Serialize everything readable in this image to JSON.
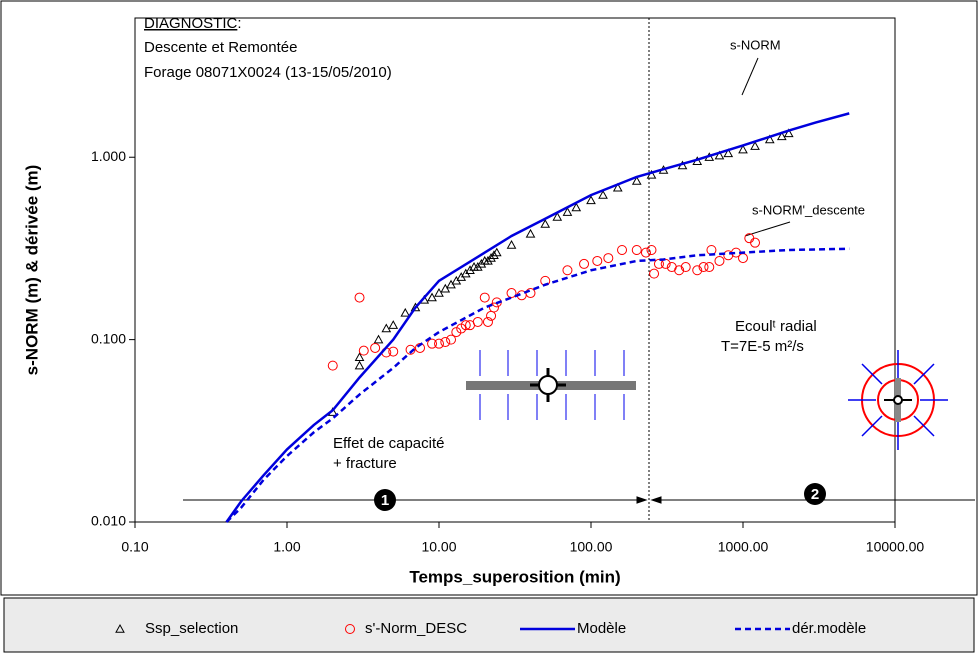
{
  "chart_data": {
    "type": "scatter",
    "title": "DIAGNOSTIC",
    "title_suffix": ":",
    "subtitle_lines": [
      "Descente et Remontée",
      "Forage 08071X0024 (13-15/05/2010)"
    ],
    "xlabel": "Temps_superosition (min)",
    "ylabel": "s-NORM (m) & dérivée (m)",
    "xscale": "log",
    "yscale": "log",
    "xlim": [
      0.1,
      10000
    ],
    "ylim": [
      0.01,
      5.8
    ],
    "xticks": [
      {
        "value": 0.1,
        "label": "0.10"
      },
      {
        "value": 1,
        "label": "1.00"
      },
      {
        "value": 10,
        "label": "10.00"
      },
      {
        "value": 100,
        "label": "100.00"
      },
      {
        "value": 1000,
        "label": "1000.00"
      },
      {
        "value": 10000,
        "label": "10000.00"
      }
    ],
    "yticks": [
      {
        "value": 0.01,
        "label": "0.010"
      },
      {
        "value": 0.1,
        "label": "0.100"
      },
      {
        "value": 1,
        "label": "1.000"
      }
    ],
    "annotations": {
      "snorm": "s-NORM",
      "sderiv": "s-NORM'_descente",
      "ecoul": "Ecoulᵗ radial",
      "transm": "T=7E-5 m²/s",
      "effet1": "Effet de capacité",
      "effet2": "+ fracture",
      "zone1": "1",
      "zone2": "2"
    },
    "series": [
      {
        "name": "Ssp_selection",
        "marker": "triangle",
        "color": "#000000",
        "x": [
          2,
          3,
          3,
          4,
          4.5,
          5,
          6,
          7,
          8,
          9,
          10,
          11,
          12,
          13,
          14,
          15,
          16,
          17,
          18,
          19,
          20,
          21,
          22,
          23,
          24,
          30,
          40,
          50,
          60,
          70,
          80,
          100,
          120,
          150,
          200,
          250,
          300,
          400,
          500,
          600,
          700,
          800,
          1000,
          1200,
          1500,
          1800,
          2000
        ],
        "values": [
          0.04,
          0.072,
          0.08,
          0.1,
          0.115,
          0.12,
          0.14,
          0.15,
          0.165,
          0.17,
          0.18,
          0.19,
          0.2,
          0.21,
          0.22,
          0.23,
          0.24,
          0.25,
          0.25,
          0.26,
          0.27,
          0.27,
          0.28,
          0.29,
          0.3,
          0.33,
          0.38,
          0.43,
          0.47,
          0.5,
          0.53,
          0.58,
          0.62,
          0.68,
          0.74,
          0.8,
          0.85,
          0.9,
          0.95,
          1.0,
          1.02,
          1.05,
          1.1,
          1.15,
          1.25,
          1.3,
          1.35
        ]
      },
      {
        "name": "s'-Norm_DESC",
        "marker": "circle",
        "color": "#ff0000",
        "x": [
          2,
          3,
          3.2,
          3.8,
          4.5,
          5,
          6.5,
          7.5,
          9,
          10,
          11,
          12,
          13,
          14,
          15,
          16,
          18,
          20,
          21,
          22,
          23,
          24,
          30,
          35,
          40,
          50,
          70,
          90,
          110,
          130,
          160,
          200,
          230,
          250,
          260,
          280,
          310,
          340,
          380,
          420,
          500,
          550,
          600,
          620,
          700,
          800,
          900,
          1000,
          1100,
          1200
        ],
        "values": [
          0.072,
          0.17,
          0.087,
          0.09,
          0.085,
          0.086,
          0.088,
          0.09,
          0.095,
          0.095,
          0.097,
          0.1,
          0.11,
          0.115,
          0.12,
          0.12,
          0.125,
          0.17,
          0.125,
          0.135,
          0.15,
          0.16,
          0.18,
          0.175,
          0.18,
          0.21,
          0.24,
          0.26,
          0.27,
          0.28,
          0.31,
          0.31,
          0.3,
          0.31,
          0.23,
          0.26,
          0.26,
          0.25,
          0.24,
          0.25,
          0.24,
          0.25,
          0.25,
          0.31,
          0.27,
          0.29,
          0.3,
          0.28,
          0.36,
          0.34
        ]
      },
      {
        "name": "Modèle",
        "marker": "line",
        "dash": false,
        "color": "#0000dd",
        "x": [
          0.4,
          0.5,
          0.7,
          1,
          1.5,
          2,
          3,
          5,
          7,
          10,
          20,
          30,
          50,
          100,
          200,
          300,
          500,
          1000,
          2000,
          3000,
          5000
        ],
        "values": [
          0.01,
          0.013,
          0.018,
          0.025,
          0.034,
          0.041,
          0.062,
          0.1,
          0.15,
          0.21,
          0.3,
          0.37,
          0.46,
          0.62,
          0.78,
          0.86,
          0.97,
          1.16,
          1.4,
          1.55,
          1.74
        ]
      },
      {
        "name": "dér.modèle",
        "marker": "line",
        "dash": true,
        "color": "#0000dd",
        "x": [
          0.4,
          0.5,
          0.7,
          1,
          1.5,
          2,
          3,
          5,
          7,
          10,
          20,
          30,
          50,
          100,
          200,
          300,
          500,
          1000,
          2000,
          5000
        ],
        "values": [
          0.01,
          0.012,
          0.017,
          0.023,
          0.031,
          0.037,
          0.05,
          0.07,
          0.09,
          0.11,
          0.15,
          0.17,
          0.2,
          0.24,
          0.27,
          0.275,
          0.29,
          0.3,
          0.31,
          0.315
        ]
      }
    ]
  }
}
